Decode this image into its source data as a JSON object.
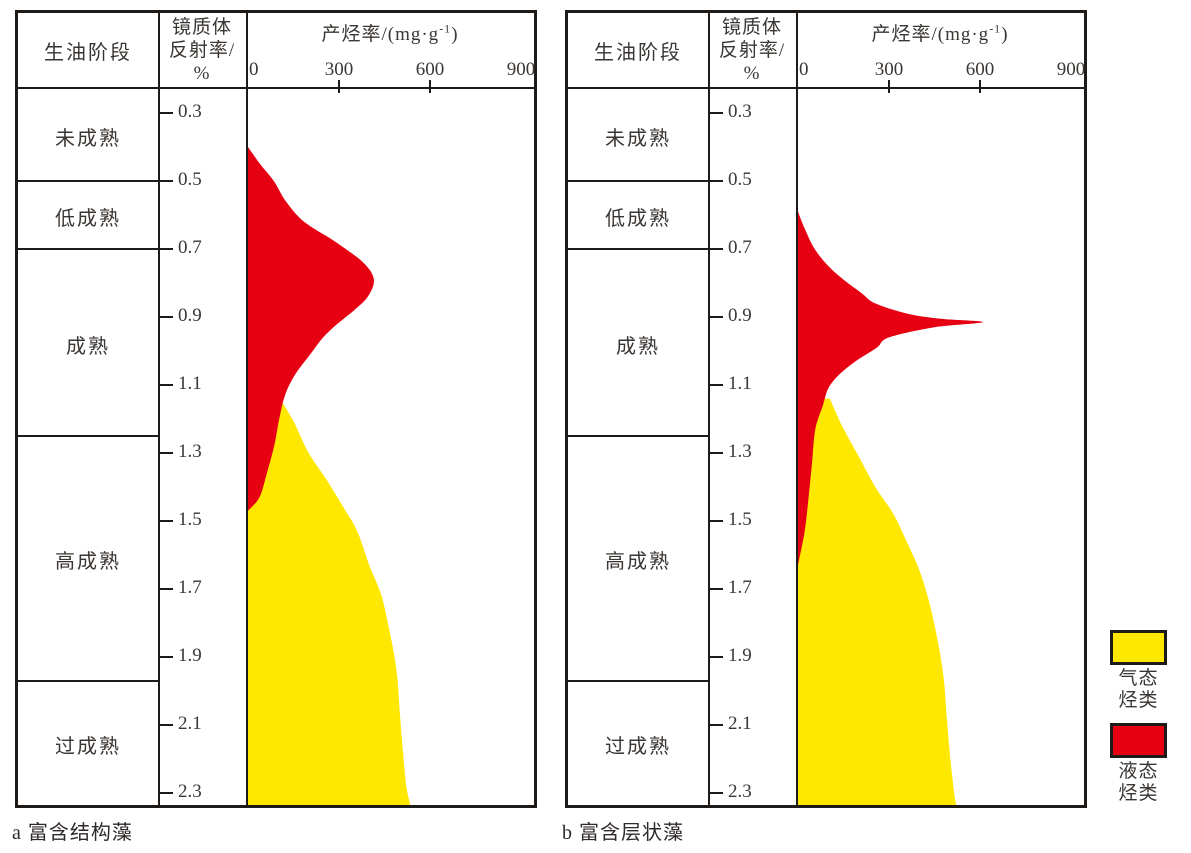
{
  "figure": {
    "caption_a": "a 富含结构藻",
    "caption_b": "b 富含层状藻"
  },
  "shared": {
    "stage_header": "生油阶段",
    "ro_header_lines": [
      "镜质体",
      "反射率/",
      "%"
    ],
    "yield_header_main": "产烃率/(mg·g",
    "yield_header_sup": "-1",
    "yield_header_close": ")"
  },
  "colors": {
    "line": "#1d1a17",
    "text": "#3a3633",
    "liquid_red": "#e60012",
    "gas_yellow": "#ffe800"
  },
  "legend": {
    "items": [
      {
        "id": "gas",
        "swatch_color": "#ffe800",
        "label_lines": [
          "气态",
          "烃类"
        ]
      },
      {
        "id": "liquid",
        "swatch_color": "#e60012",
        "label_lines": [
          "液态",
          "烃类"
        ]
      }
    ]
  },
  "chart_data": [
    {
      "type": "area",
      "panel_label": "a",
      "caption": "a 富含结构藻",
      "title": "产烃率/(mg·g⁻¹)",
      "xlabel": "产烃率/(mg·g⁻¹)",
      "ylabel": "镜质体反射率/%",
      "stage_column_header": "生油阶段",
      "xlim": [
        0,
        945
      ],
      "ro_range": [
        0.23,
        2.34
      ],
      "grid": false,
      "x_ticks": [
        {
          "label": "0",
          "value": 0,
          "tick": false
        },
        {
          "label": "300",
          "value": 300,
          "tick": true
        },
        {
          "label": "600",
          "value": 600,
          "tick": true
        },
        {
          "label": "900",
          "value": 900,
          "tick": false
        }
      ],
      "ro_ticks": [
        "0.3",
        "0.5",
        "0.7",
        "0.9",
        "1.1",
        "1.3",
        "1.5",
        "1.7",
        "1.9",
        "2.1",
        "2.3"
      ],
      "stages": [
        {
          "label": "未成熟",
          "ro_from": null,
          "ro_to": 0.5
        },
        {
          "label": "低成熟",
          "ro_from": 0.5,
          "ro_to": 0.7
        },
        {
          "label": "成熟",
          "ro_from": 0.7,
          "ro_to": 1.25
        },
        {
          "label": "高成熟",
          "ro_from": 1.25,
          "ro_to": 1.97
        },
        {
          "label": "过成熟",
          "ro_from": 1.97,
          "ro_to": null
        }
      ],
      "series": [
        {
          "id": "liquid",
          "name": "液态烃类",
          "color_key": "liquid_red",
          "points_ro_yield": [
            [
              0.4,
              0
            ],
            [
              0.45,
              40
            ],
            [
              0.5,
              85
            ],
            [
              0.56,
              125
            ],
            [
              0.62,
              185
            ],
            [
              0.68,
              290
            ],
            [
              0.74,
              380
            ],
            [
              0.79,
              415
            ],
            [
              0.84,
              395
            ],
            [
              0.88,
              350
            ],
            [
              0.92,
              295
            ],
            [
              0.96,
              248
            ],
            [
              1.01,
              205
            ],
            [
              1.07,
              155
            ],
            [
              1.13,
              122
            ],
            [
              1.2,
              103
            ],
            [
              1.28,
              86
            ],
            [
              1.36,
              62
            ],
            [
              1.43,
              38
            ],
            [
              1.47,
              0
            ]
          ]
        },
        {
          "id": "gas",
          "name": "气态烃类",
          "color_key": "gas_yellow",
          "points_ro_yield": [
            [
              1.15,
              112
            ],
            [
              1.21,
              152
            ],
            [
              1.3,
              200
            ],
            [
              1.38,
              260
            ],
            [
              1.46,
              315
            ],
            [
              1.53,
              360
            ],
            [
              1.63,
              400
            ],
            [
              1.72,
              440
            ],
            [
              1.83,
              468
            ],
            [
              1.94,
              490
            ],
            [
              2.06,
              500
            ],
            [
              2.17,
              510
            ],
            [
              2.28,
              522
            ],
            [
              2.335,
              535
            ]
          ]
        }
      ]
    },
    {
      "type": "area",
      "panel_label": "b",
      "caption": "b 富含层状藻",
      "title": "产烃率/(mg·g⁻¹)",
      "xlabel": "产烃率/(mg·g⁻¹)",
      "ylabel": "镜质体反射率/%",
      "stage_column_header": "生油阶段",
      "xlim": [
        0,
        945
      ],
      "ro_range": [
        0.23,
        2.34
      ],
      "grid": false,
      "x_ticks": [
        {
          "label": "0",
          "value": 0,
          "tick": false
        },
        {
          "label": "300",
          "value": 300,
          "tick": true
        },
        {
          "label": "600",
          "value": 600,
          "tick": true
        },
        {
          "label": "900",
          "value": 900,
          "tick": false
        }
      ],
      "ro_ticks": [
        "0.3",
        "0.5",
        "0.7",
        "0.9",
        "1.1",
        "1.3",
        "1.5",
        "1.7",
        "1.9",
        "2.1",
        "2.3"
      ],
      "stages": [
        {
          "label": "未成熟",
          "ro_from": null,
          "ro_to": 0.5
        },
        {
          "label": "低成熟",
          "ro_from": 0.5,
          "ro_to": 0.7
        },
        {
          "label": "成熟",
          "ro_from": 0.7,
          "ro_to": 1.25
        },
        {
          "label": "高成熟",
          "ro_from": 1.25,
          "ro_to": 1.97
        },
        {
          "label": "过成熟",
          "ro_from": 1.97,
          "ro_to": null
        }
      ],
      "series": [
        {
          "id": "liquid",
          "name": "液态烃类",
          "color_key": "liquid_red",
          "points_ro_yield": [
            [
              0.59,
              0
            ],
            [
              0.64,
              22
            ],
            [
              0.7,
              55
            ],
            [
              0.75,
              100
            ],
            [
              0.79,
              150
            ],
            [
              0.83,
              210
            ],
            [
              0.86,
              255
            ],
            [
              0.89,
              360
            ],
            [
              0.905,
              470
            ],
            [
              0.915,
              610
            ],
            [
              0.93,
              450
            ],
            [
              0.96,
              300
            ],
            [
              0.99,
              260
            ],
            [
              1.03,
              190
            ],
            [
              1.07,
              135
            ],
            [
              1.11,
              100
            ],
            [
              1.16,
              82
            ],
            [
              1.23,
              57
            ],
            [
              1.33,
              46
            ],
            [
              1.43,
              35
            ],
            [
              1.53,
              22
            ],
            [
              1.63,
              0
            ]
          ]
        },
        {
          "id": "gas",
          "name": "气态烃类",
          "color_key": "gas_yellow",
          "points_ro_yield": [
            [
              1.14,
              105
            ],
            [
              1.22,
              145
            ],
            [
              1.31,
              200
            ],
            [
              1.4,
              255
            ],
            [
              1.48,
              315
            ],
            [
              1.56,
              358
            ],
            [
              1.64,
              398
            ],
            [
              1.73,
              430
            ],
            [
              1.84,
              458
            ],
            [
              1.96,
              480
            ],
            [
              2.07,
              490
            ],
            [
              2.18,
              500
            ],
            [
              2.3,
              515
            ],
            [
              2.335,
              522
            ]
          ]
        }
      ]
    }
  ]
}
